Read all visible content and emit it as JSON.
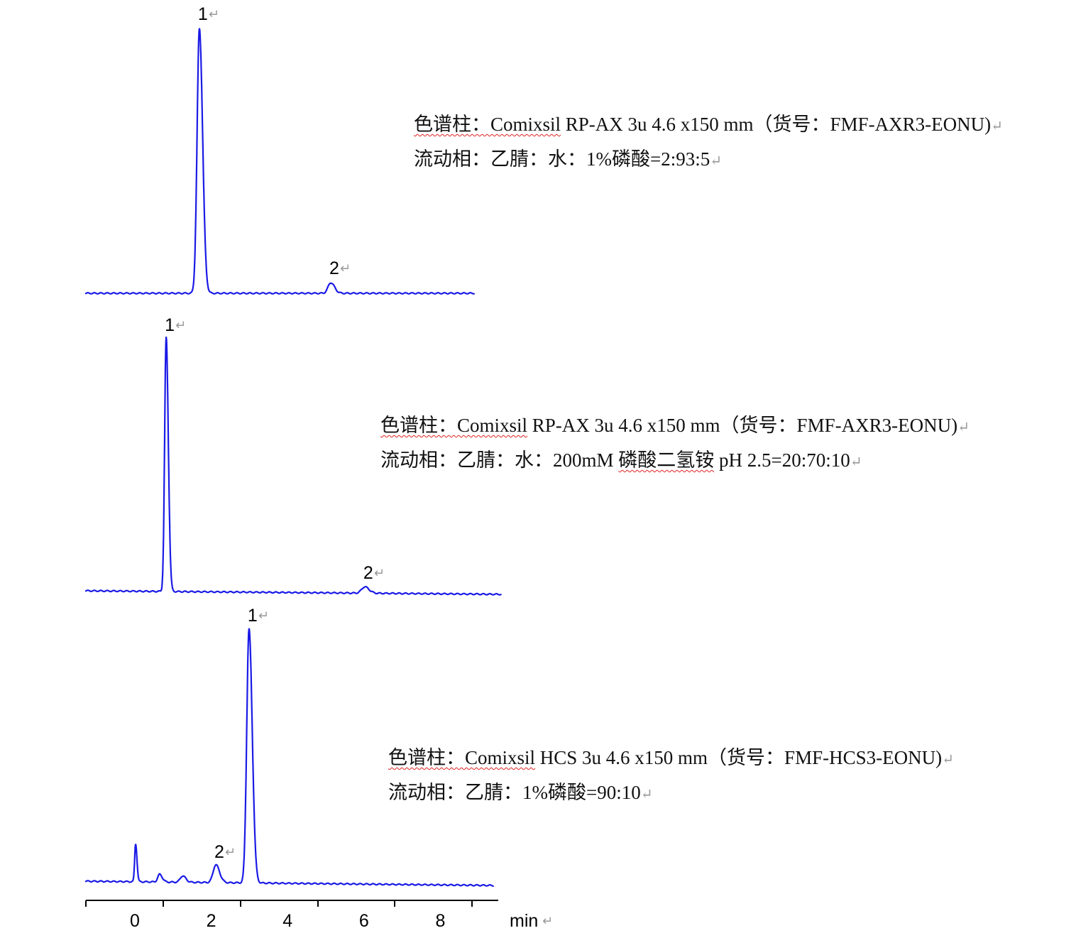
{
  "chart_data": [
    {
      "type": "line",
      "series": [
        {
          "peaks": [
            {
              "label": "1",
              "rt": 1.69,
              "height": 100,
              "width": 0.06
            },
            {
              "label": "2",
              "rt": 5.13,
              "height": 4,
              "width": 0.07
            }
          ],
          "x_range": [
            -1.3,
            8.9
          ]
        }
      ],
      "color": "#1a1ae6",
      "notes": [
        [
          {
            "text": "色谱柱：Comixsil",
            "spell": true
          },
          {
            "text": " RP-AX 3u 4.6 x150 mm（货号：FMF-AXR3-EONU)",
            "spell": false
          }
        ],
        [
          {
            "text": "流动相：乙腈：水：1%磷酸=2:93:5",
            "spell": false
          }
        ]
      ]
    },
    {
      "type": "line",
      "series": [
        {
          "peaks": [
            {
              "label": "1",
              "rt": 0.82,
              "height": 100,
              "width": 0.04
            },
            {
              "label": "2",
              "rt": 6.02,
              "height": 2.5,
              "width": 0.08
            }
          ],
          "x_range": [
            -1.3,
            9.6
          ]
        }
      ],
      "color": "#1a1ae6",
      "notes": [
        [
          {
            "text": "色谱柱：Comixsil",
            "spell": true
          },
          {
            "text": " RP-AX 3u 4.6 x150 mm（货号：FMF-AXR3-EONU)",
            "spell": false
          }
        ],
        [
          {
            "text": "流动相：乙腈：水：200mM ",
            "spell": false
          },
          {
            "text": "磷酸二氢铵",
            "spell": true
          },
          {
            "text": "  pH 2.5=20:70:10",
            "spell": false
          }
        ]
      ]
    },
    {
      "type": "line",
      "series": [
        {
          "peaks": [
            {
              "label": "",
              "rt": 0.02,
              "height": 15,
              "width": 0.025
            },
            {
              "label": "",
              "rt": 0.65,
              "height": 3,
              "width": 0.05
            },
            {
              "label": "",
              "rt": 1.25,
              "height": 2.5,
              "width": 0.06
            },
            {
              "label": "2",
              "rt": 2.12,
              "height": 7,
              "width": 0.07
            },
            {
              "label": "1",
              "rt": 2.99,
              "height": 100,
              "width": 0.06
            }
          ],
          "x_range": [
            -1.3,
            9.4
          ]
        }
      ],
      "color": "#1a1ae6",
      "notes": [
        [
          {
            "text": "色谱柱：Comixsil",
            "spell": true
          },
          {
            "text": " HCS 3u 4.6 x150 mm（货号：FMF-HCS3-EONU)",
            "spell": false
          }
        ],
        [
          {
            "text": "流动相：乙腈：1%磷酸=90:10",
            "spell": false
          }
        ]
      ]
    }
  ],
  "x_axis": {
    "ticks": [
      "0",
      "2",
      "4",
      "6",
      "8"
    ],
    "unit": "min"
  },
  "return_mark": "↵"
}
